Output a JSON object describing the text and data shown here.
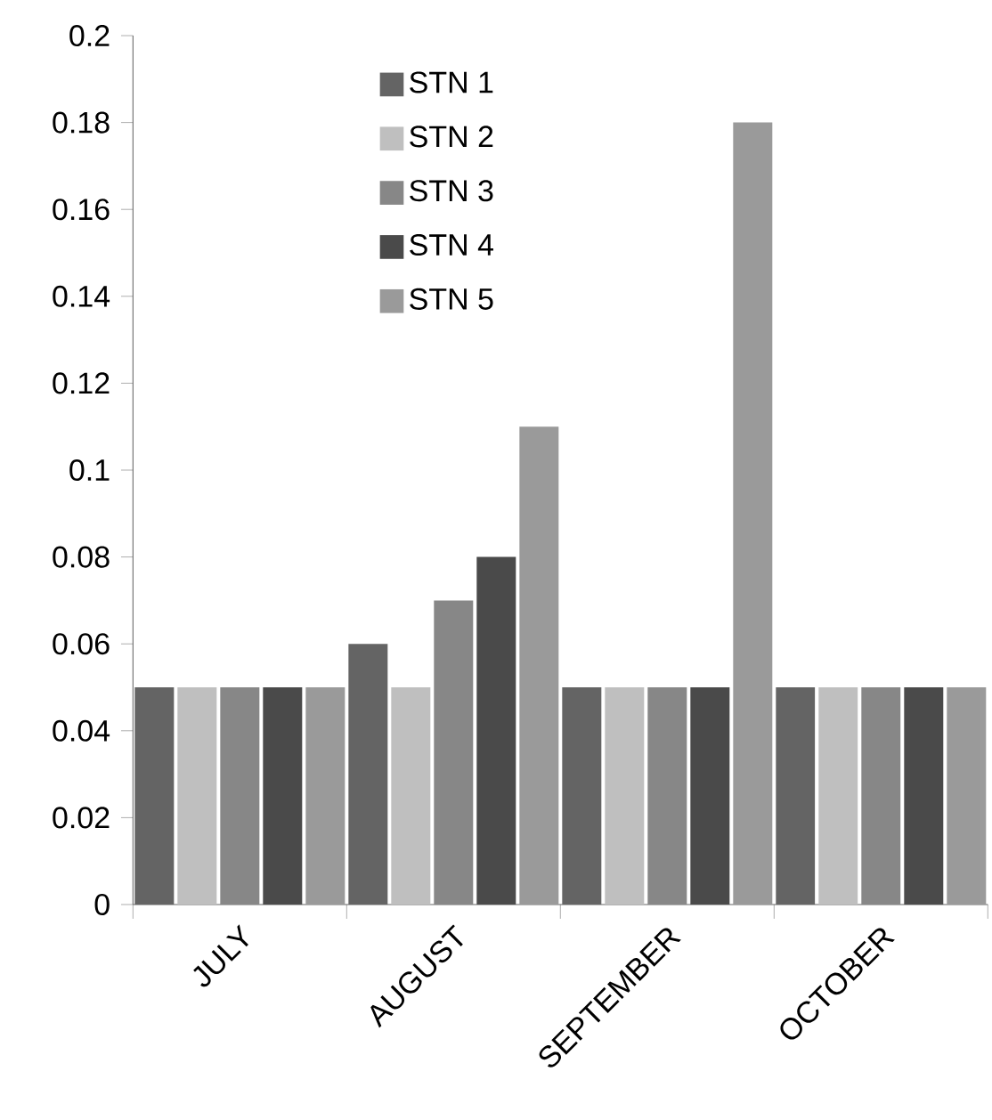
{
  "chart_data": {
    "type": "bar",
    "categories": [
      "JULY",
      "AUGUST",
      "SEPTEMBER",
      "OCTOBER"
    ],
    "series": [
      {
        "name": "STN 1",
        "color": "#646464",
        "values": [
          0.05,
          0.06,
          0.05,
          0.05
        ]
      },
      {
        "name": "STN 2",
        "color": "#bfbfbf",
        "values": [
          0.05,
          0.05,
          0.05,
          0.05
        ]
      },
      {
        "name": "STN 3",
        "color": "#878787",
        "values": [
          0.05,
          0.07,
          0.05,
          0.05
        ]
      },
      {
        "name": "STN 4",
        "color": "#4a4a4a",
        "values": [
          0.05,
          0.08,
          0.05,
          0.05
        ]
      },
      {
        "name": "STN 5",
        "color": "#9a9a9a",
        "values": [
          0.05,
          0.11,
          0.18,
          0.05
        ]
      }
    ],
    "ylim": [
      0,
      0.2
    ],
    "yticks": [
      0,
      0.02,
      0.04,
      0.06,
      0.08,
      0.1,
      0.12,
      0.14,
      0.16,
      0.18,
      0.2
    ],
    "grid": false,
    "legend": "top left"
  }
}
